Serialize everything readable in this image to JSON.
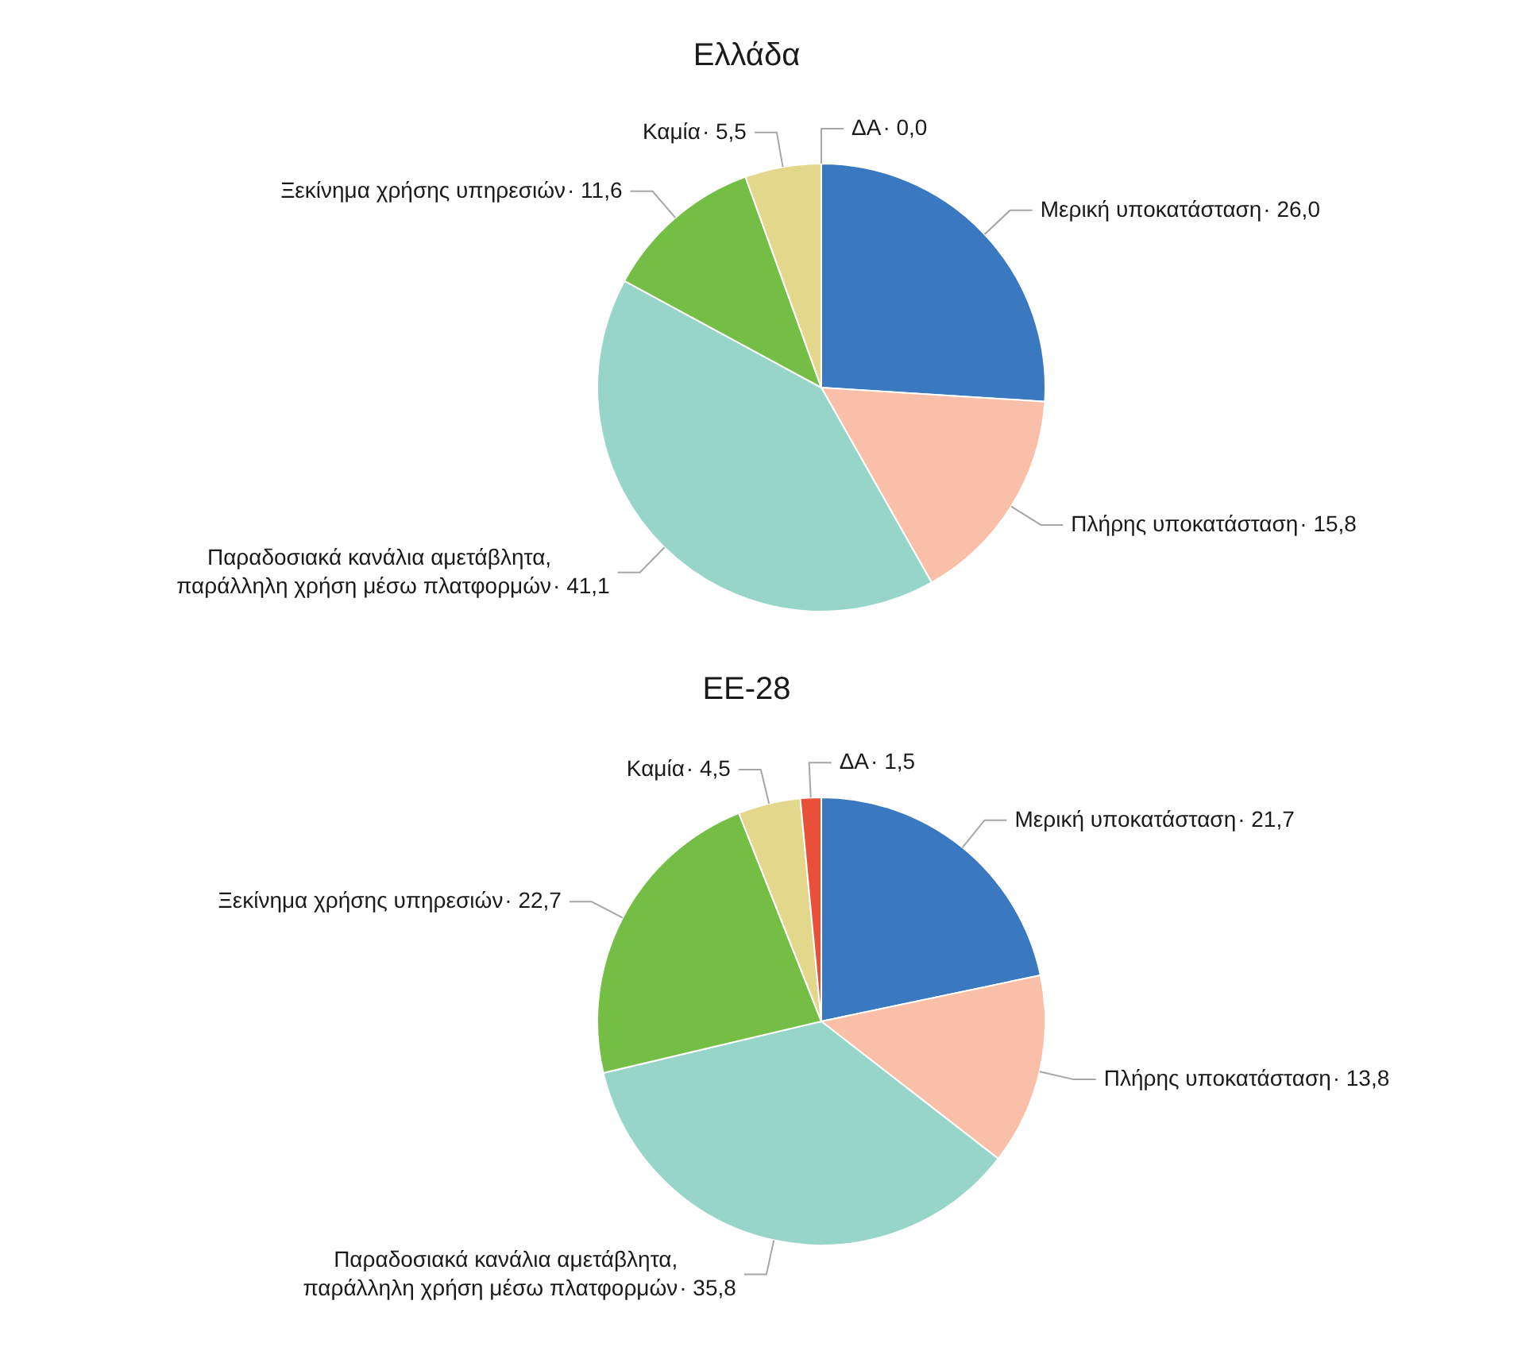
{
  "chart_data": [
    {
      "type": "pie",
      "title": "Ελλάδα",
      "categories": [
        "Μερική υποκατάσταση",
        "Πλήρης υποκατάσταση",
        "Παραδοσιακά κανάλια αμετάβλητα, παράλληλη χρήση μέσω πλατφορμών",
        "Ξεκίνημα χρήσης υπηρεσιών",
        "Καμία",
        "ΔΑ"
      ],
      "values": [
        26.0,
        15.8,
        41.1,
        11.6,
        5.5,
        0.0
      ],
      "colors": [
        "#3a78bf",
        "#f9bfa8",
        "#98d5c9",
        "#74be45",
        "#e2d78b",
        "#e8503a"
      ],
      "value_labels": [
        "· 26,0",
        "· 15,8",
        "· 41,1",
        "· 11,6",
        "· 5,5",
        "· 0,0"
      ]
    },
    {
      "type": "pie",
      "title": "ΕΕ-28",
      "categories": [
        "Μερική υποκατάσταση",
        "Πλήρης υποκατάσταση",
        "Παραδοσιακά κανάλια αμετάβλητα, παράλληλη χρήση μέσω πλατφορμών",
        "Ξεκίνημα χρήσης υπηρεσιών",
        "Καμία",
        "ΔΑ"
      ],
      "values": [
        21.7,
        13.8,
        35.8,
        22.7,
        4.5,
        1.5
      ],
      "colors": [
        "#3a78bf",
        "#f9bfa8",
        "#98d5c9",
        "#74be45",
        "#e2d78b",
        "#e8503a"
      ],
      "value_labels": [
        "· 21,7",
        "· 13,8",
        "· 35,8",
        "· 22,7",
        "· 4,5",
        "· 1,5"
      ]
    }
  ]
}
